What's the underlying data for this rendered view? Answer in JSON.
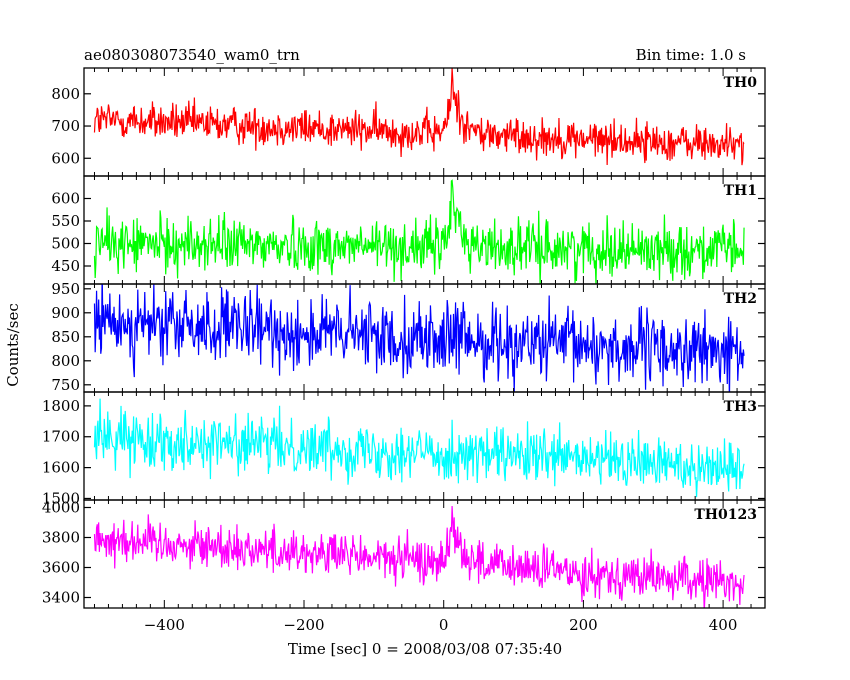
{
  "header": {
    "title": "ae080308073540_wam0_trn",
    "bin_time": "Bin time: 1.0 s"
  },
  "axes": {
    "xlabel": "Time [sec] 0 = 2008/03/08 07:35:40",
    "ylabel": "Counts/sec",
    "x_ticks": [
      -400,
      -200,
      0,
      200,
      400
    ],
    "xlim": [
      -515,
      460
    ]
  },
  "chart_data": {
    "type": "line",
    "x": {
      "start": -500,
      "end": 430,
      "step": 1
    },
    "panels": [
      {
        "name": "TH0",
        "color": "#ff0000",
        "ylim": [
          545,
          880
        ],
        "y_ticks": [
          600,
          700,
          800
        ],
        "baseline": {
          "start": 720,
          "end": 640
        },
        "noise": 30,
        "burst": {
          "peak_time": 12,
          "peak": 880,
          "excess": 160,
          "rise": 5,
          "decay": 12
        }
      },
      {
        "name": "TH1",
        "color": "#00ff00",
        "ylim": [
          410,
          650
        ],
        "y_ticks": [
          450,
          500,
          550,
          600
        ],
        "baseline": {
          "start": 500,
          "end": 485
        },
        "noise": 30,
        "burst": {
          "peak_time": 12,
          "peak": 640,
          "excess": 110,
          "rise": 5,
          "decay": 12
        }
      },
      {
        "name": "TH2",
        "color": "#0000ff",
        "ylim": [
          735,
          960
        ],
        "y_ticks": [
          750,
          800,
          850,
          900,
          950
        ],
        "baseline": {
          "start": 880,
          "end": 815
        },
        "noise": 38,
        "burst": null
      },
      {
        "name": "TH3",
        "color": "#00ffff",
        "ylim": [
          1495,
          1845
        ],
        "y_ticks": [
          1500,
          1600,
          1700,
          1800
        ],
        "baseline": {
          "start": 1700,
          "end": 1600
        },
        "noise": 45,
        "burst": null
      },
      {
        "name": "TH0123",
        "color": "#ff00ff",
        "ylim": [
          3330,
          4050
        ],
        "y_ticks": [
          3400,
          3600,
          3800,
          4000
        ],
        "baseline": {
          "start": 3800,
          "end": 3490
        },
        "noise": 75,
        "burst": {
          "peak_time": 12,
          "peak": 4010,
          "excess": 320,
          "rise": 5,
          "decay": 12
        }
      }
    ]
  }
}
